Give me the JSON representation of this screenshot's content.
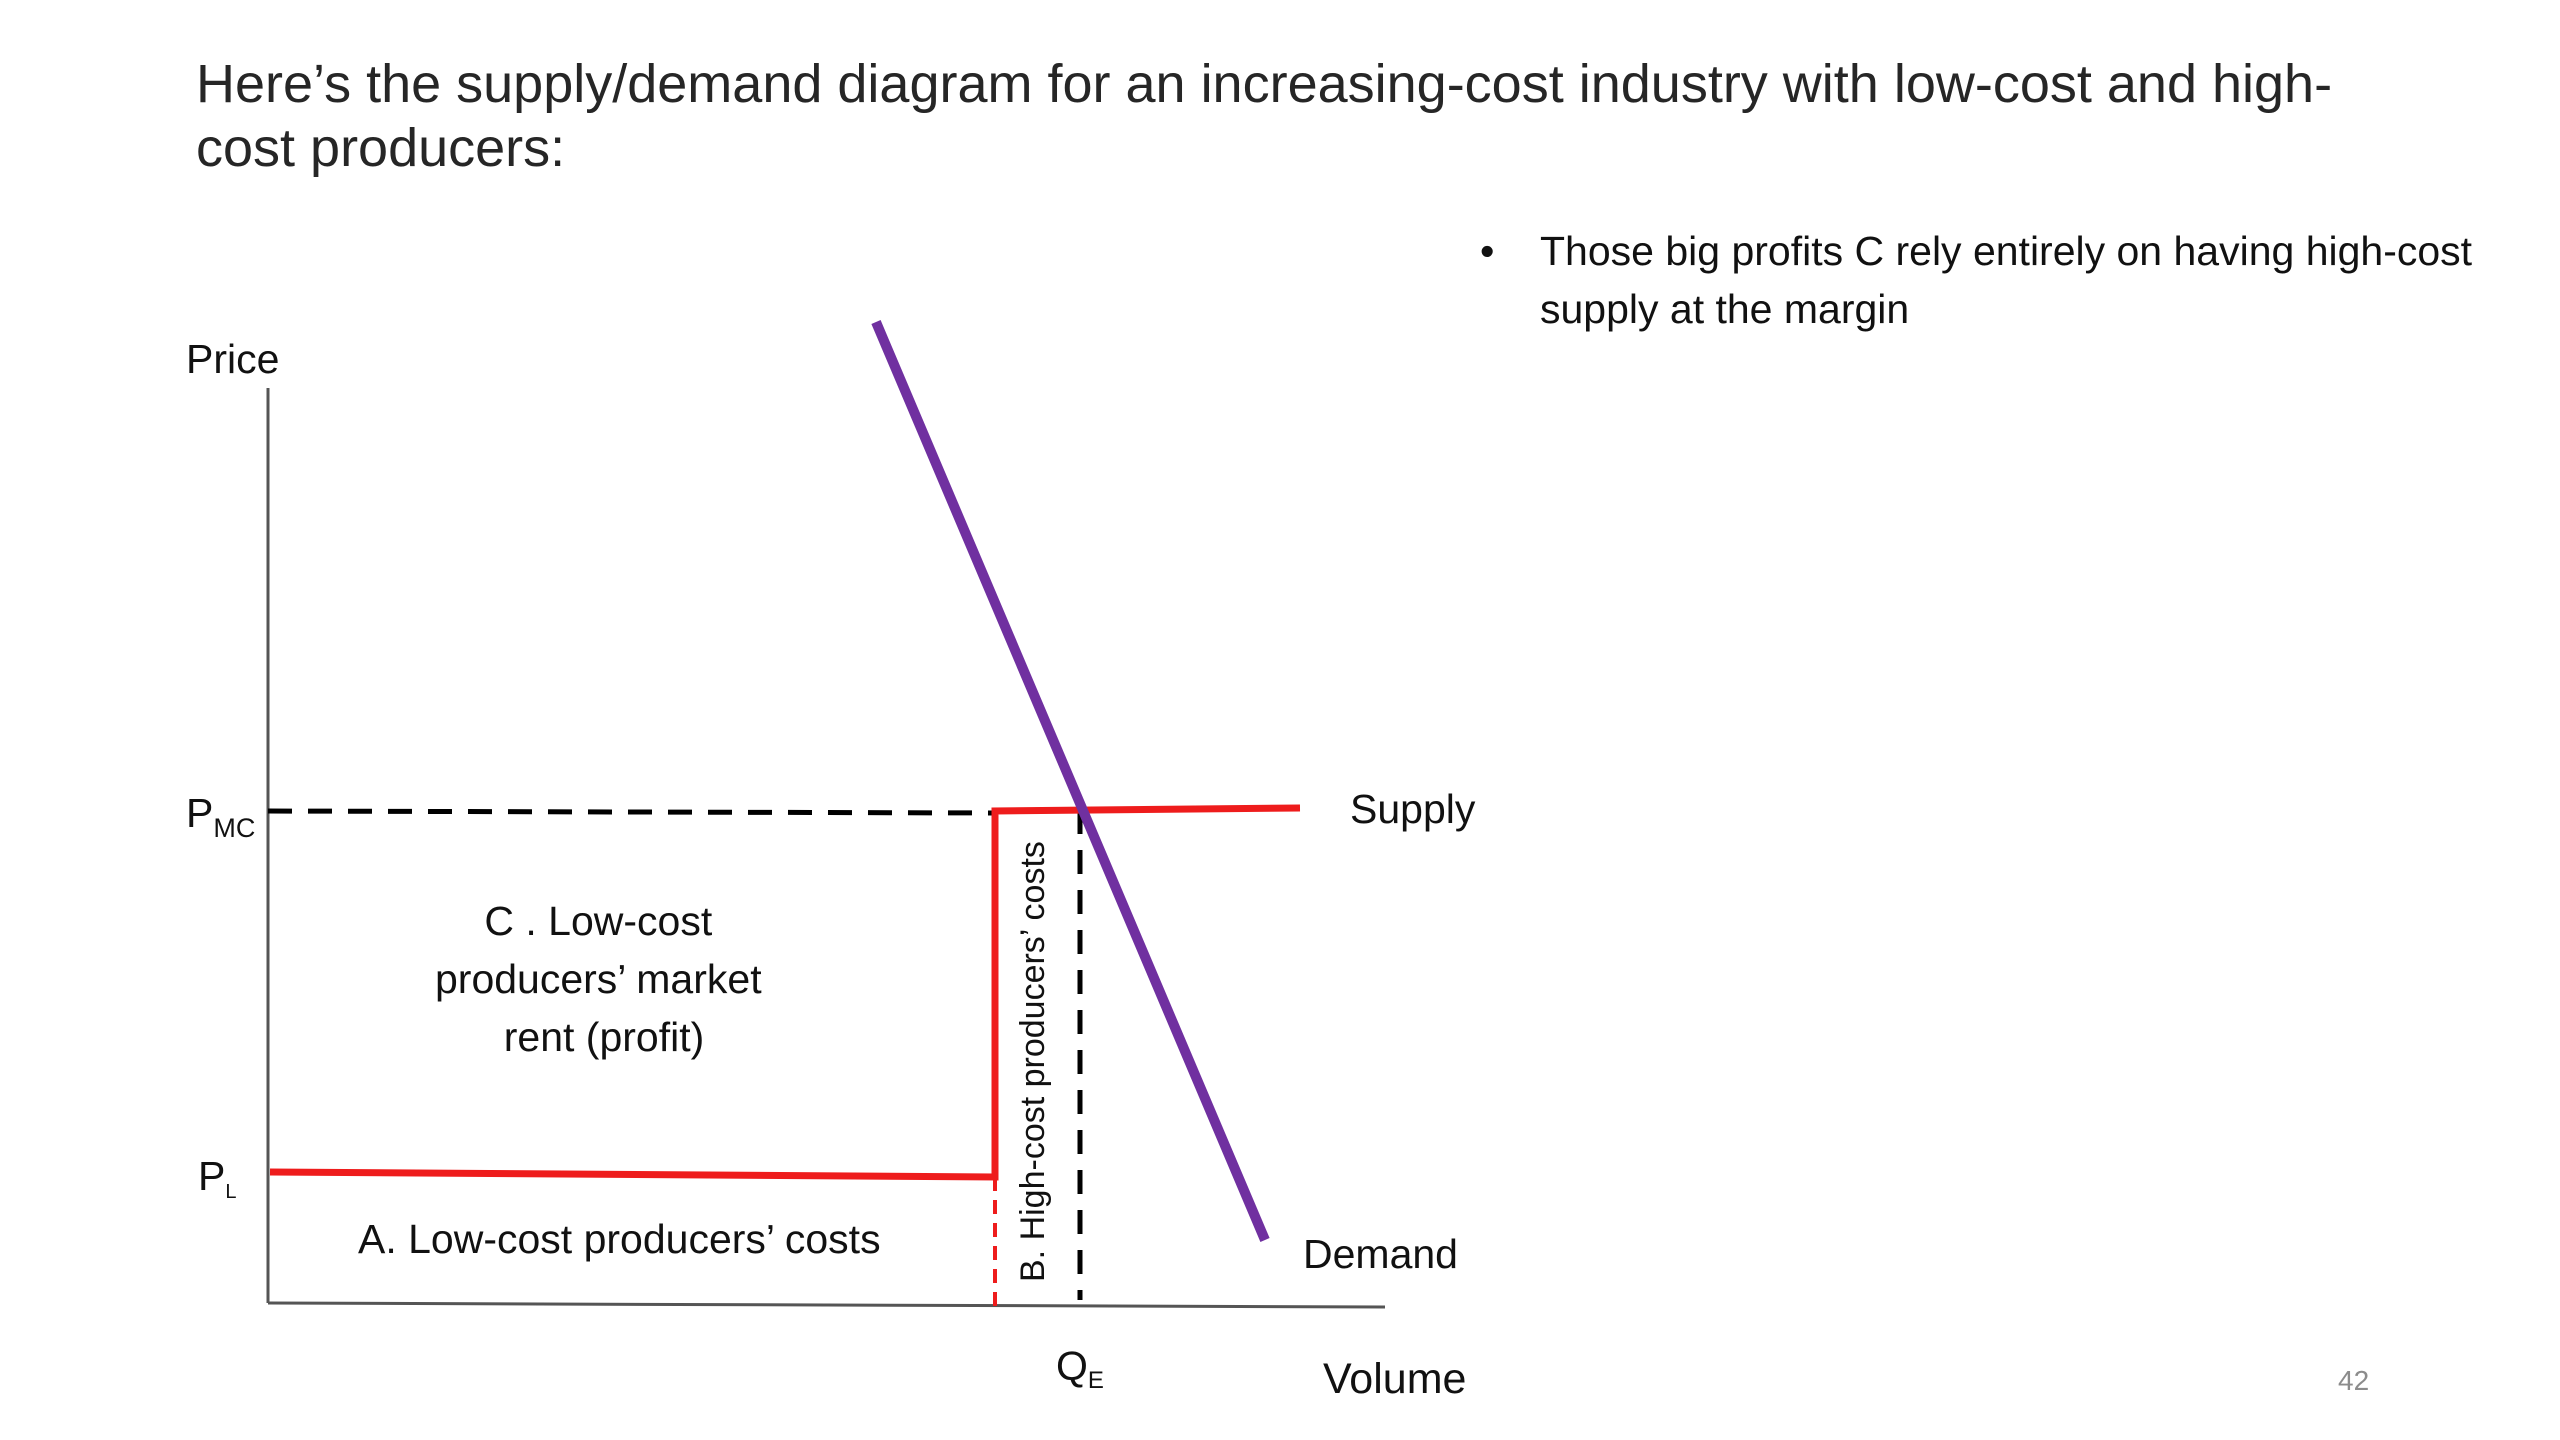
{
  "slide": {
    "title": "Here’s the supply/demand diagram for an increasing-cost industry with low-cost and high-cost producers:",
    "bullets": [
      "Those big profits C rely entirely on having high-cost supply at the margin"
    ],
    "page_number": "42"
  },
  "diagram": {
    "y_axis_label": "Price",
    "x_axis_label": "Volume",
    "price_levels": {
      "p_mc": {
        "main": "P",
        "sub": "MC"
      },
      "p_l": {
        "main": "P",
        "sub": "L"
      }
    },
    "quantity_label": {
      "main": "Q",
      "sub": "E"
    },
    "curves": {
      "supply": "Supply",
      "demand": "Demand"
    },
    "regions": {
      "c_lines": [
        "C .    Low-cost",
        "producers’ market",
        "rent (profit)"
      ],
      "a": "A.   Low-cost producers’ costs",
      "b": "B. High-cost producers’ costs"
    },
    "colors": {
      "supply": "#ee1c1c",
      "demand": "#7030a0",
      "axes": "#555555",
      "guides": "#000000"
    }
  }
}
